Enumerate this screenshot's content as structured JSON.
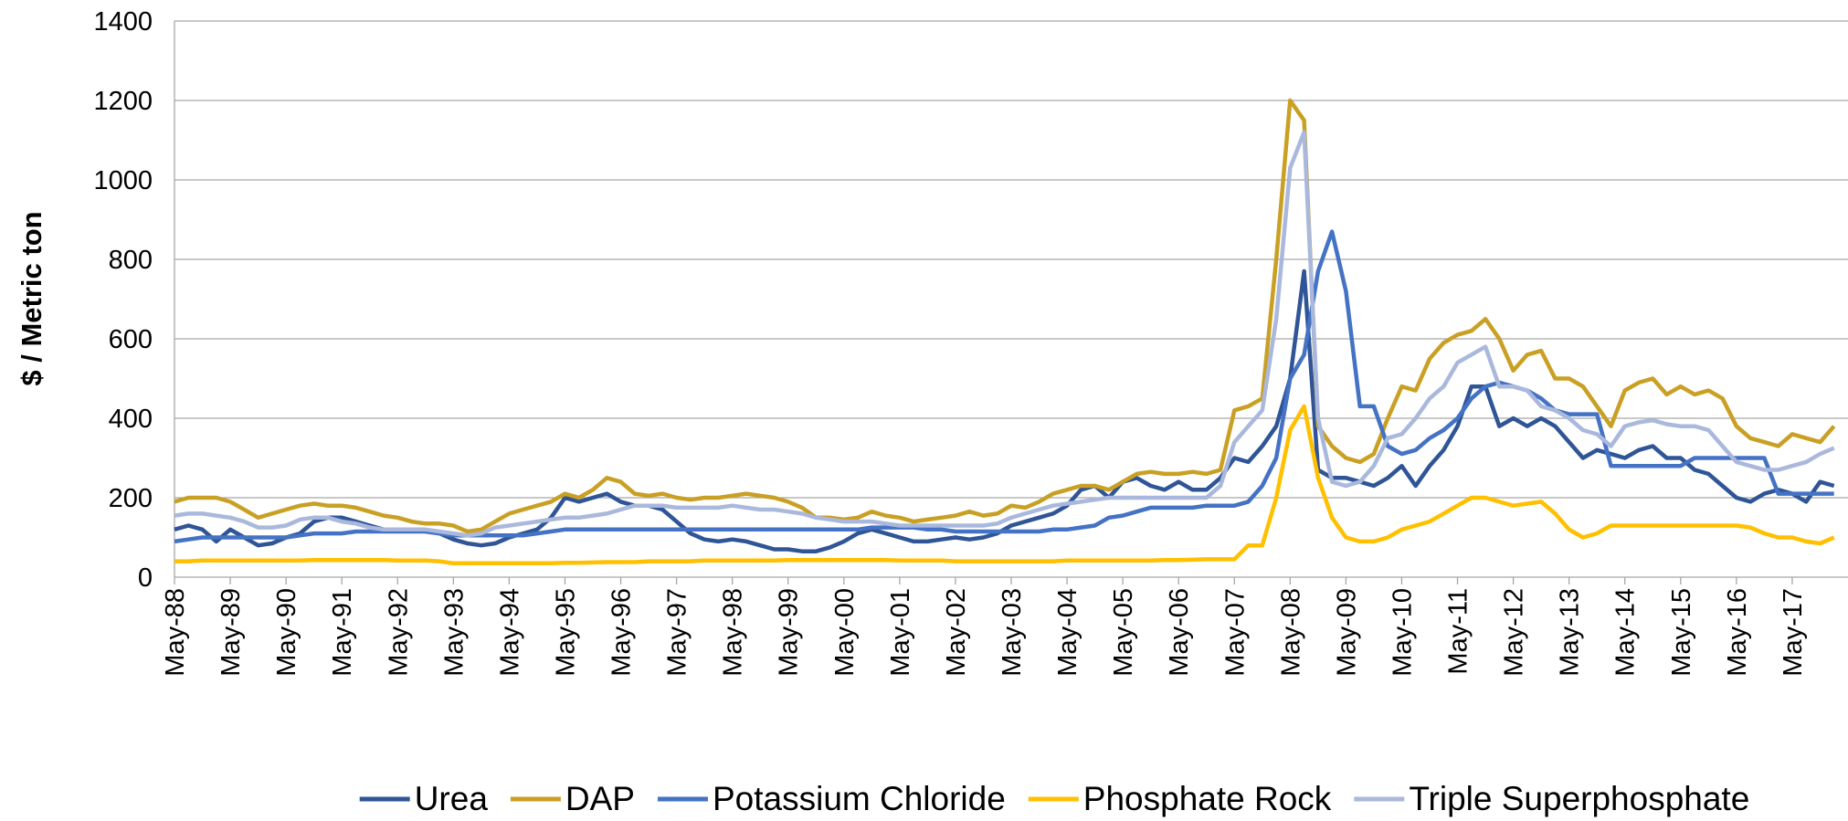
{
  "chart_data": {
    "type": "line",
    "y_label": "$ / Metric ton",
    "categories": [
      "May-88",
      null,
      null,
      null,
      "May-89",
      null,
      null,
      null,
      "May-90",
      null,
      null,
      null,
      "May-91",
      null,
      null,
      null,
      "May-92",
      null,
      null,
      null,
      "May-93",
      null,
      null,
      null,
      "May-94",
      null,
      null,
      null,
      "May-95",
      null,
      null,
      null,
      "May-96",
      null,
      null,
      null,
      "May-97",
      null,
      null,
      null,
      "May-98",
      null,
      null,
      null,
      "May-99",
      null,
      null,
      null,
      "May-00",
      null,
      null,
      null,
      "May-01",
      null,
      null,
      null,
      "May-02",
      null,
      null,
      null,
      "May-03",
      null,
      null,
      null,
      "May-04",
      null,
      null,
      null,
      "May-05",
      null,
      null,
      null,
      "May-06",
      null,
      null,
      null,
      "May-07",
      null,
      null,
      null,
      "May-08",
      null,
      null,
      null,
      "May-09",
      null,
      null,
      null,
      "May-10",
      null,
      null,
      null,
      "May-11",
      null,
      null,
      null,
      "May-12",
      null,
      null,
      null,
      "May-13",
      null,
      null,
      null,
      "May-14",
      null,
      null,
      null,
      "May-15",
      null,
      null,
      null,
      "May-16",
      null,
      null,
      null,
      "May-17",
      null,
      null,
      null
    ],
    "series": [
      {
        "name": "Urea",
        "color": "#2f5597",
        "values": [
          120,
          130,
          120,
          90,
          120,
          100,
          80,
          85,
          100,
          110,
          140,
          150,
          150,
          140,
          130,
          120,
          120,
          120,
          115,
          110,
          95,
          85,
          80,
          85,
          100,
          110,
          120,
          150,
          200,
          190,
          200,
          210,
          190,
          180,
          180,
          170,
          140,
          110,
          95,
          90,
          95,
          90,
          80,
          70,
          70,
          65,
          65,
          75,
          90,
          110,
          120,
          110,
          100,
          90,
          90,
          95,
          100,
          95,
          100,
          110,
          130,
          140,
          150,
          160,
          180,
          220,
          230,
          200,
          240,
          250,
          230,
          220,
          240,
          220,
          220,
          250,
          300,
          290,
          330,
          380,
          500,
          770,
          270,
          250,
          250,
          240,
          230,
          250,
          280,
          230,
          280,
          320,
          380,
          480,
          480,
          380,
          400,
          380,
          400,
          380,
          340,
          300,
          320,
          310,
          300,
          320,
          330,
          300,
          300,
          270,
          260,
          230,
          200,
          190,
          210,
          220,
          210,
          190,
          240,
          230
        ]
      },
      {
        "name": "DAP",
        "color": "#c9a023",
        "values": [
          190,
          200,
          200,
          200,
          190,
          170,
          150,
          160,
          170,
          180,
          185,
          180,
          180,
          175,
          165,
          155,
          150,
          140,
          135,
          135,
          130,
          115,
          120,
          140,
          160,
          170,
          180,
          190,
          210,
          200,
          220,
          250,
          240,
          210,
          205,
          210,
          200,
          195,
          200,
          200,
          205,
          210,
          205,
          200,
          190,
          175,
          150,
          150,
          145,
          150,
          165,
          155,
          150,
          140,
          145,
          150,
          155,
          165,
          155,
          160,
          180,
          175,
          190,
          210,
          220,
          230,
          230,
          220,
          240,
          260,
          265,
          260,
          260,
          265,
          260,
          270,
          420,
          430,
          450,
          800,
          1200,
          1150,
          380,
          330,
          300,
          290,
          310,
          400,
          480,
          470,
          550,
          590,
          610,
          620,
          650,
          600,
          520,
          560,
          570,
          500,
          500,
          480,
          430,
          380,
          470,
          490,
          500,
          460,
          480,
          460,
          470,
          450,
          380,
          350,
          340,
          330,
          360,
          350,
          340,
          380
        ]
      },
      {
        "name": "Potassium Chloride",
        "color": "#4472c4",
        "values": [
          90,
          95,
          100,
          100,
          100,
          100,
          100,
          100,
          100,
          105,
          110,
          110,
          110,
          115,
          115,
          115,
          115,
          115,
          115,
          110,
          105,
          105,
          105,
          105,
          105,
          105,
          110,
          115,
          120,
          120,
          120,
          120,
          120,
          120,
          120,
          120,
          120,
          120,
          120,
          120,
          120,
          120,
          120,
          120,
          120,
          120,
          120,
          120,
          120,
          120,
          125,
          125,
          125,
          125,
          120,
          120,
          115,
          115,
          115,
          115,
          115,
          115,
          115,
          120,
          120,
          125,
          130,
          150,
          155,
          165,
          175,
          175,
          175,
          175,
          180,
          180,
          180,
          190,
          230,
          300,
          500,
          560,
          770,
          870,
          720,
          430,
          430,
          330,
          310,
          320,
          350,
          370,
          400,
          450,
          480,
          490,
          480,
          470,
          450,
          420,
          410,
          410,
          410,
          280,
          280,
          280,
          280,
          280,
          280,
          300,
          300,
          300,
          300,
          300,
          300,
          210,
          210,
          210,
          210,
          210
        ]
      },
      {
        "name": "Phosphate Rock",
        "color": "#ffc000",
        "values": [
          40,
          40,
          42,
          42,
          42,
          42,
          42,
          42,
          42,
          42,
          43,
          43,
          43,
          43,
          43,
          43,
          42,
          42,
          42,
          40,
          35,
          35,
          35,
          35,
          35,
          35,
          35,
          35,
          36,
          36,
          37,
          38,
          38,
          38,
          40,
          40,
          40,
          40,
          42,
          42,
          42,
          42,
          42,
          42,
          43,
          43,
          43,
          43,
          43,
          43,
          43,
          43,
          42,
          42,
          42,
          42,
          40,
          40,
          40,
          40,
          40,
          40,
          40,
          40,
          42,
          42,
          42,
          42,
          42,
          42,
          42,
          43,
          43,
          44,
          45,
          45,
          45,
          80,
          80,
          200,
          370,
          430,
          250,
          150,
          100,
          90,
          90,
          100,
          120,
          130,
          140,
          160,
          180,
          200,
          200,
          190,
          180,
          185,
          190,
          160,
          120,
          100,
          110,
          130,
          130,
          130,
          130,
          130,
          130,
          130,
          130,
          130,
          130,
          125,
          110,
          100,
          100,
          90,
          85,
          100
        ]
      },
      {
        "name": "Triple Superphosphate",
        "color": "#a9b8dc",
        "values": [
          155,
          160,
          160,
          155,
          150,
          140,
          125,
          125,
          130,
          145,
          150,
          150,
          140,
          135,
          125,
          120,
          120,
          120,
          120,
          115,
          110,
          105,
          110,
          125,
          130,
          135,
          140,
          145,
          150,
          150,
          155,
          160,
          170,
          180,
          180,
          180,
          175,
          175,
          175,
          175,
          180,
          175,
          170,
          170,
          165,
          160,
          150,
          145,
          140,
          140,
          140,
          135,
          130,
          130,
          130,
          130,
          130,
          130,
          130,
          135,
          150,
          160,
          170,
          180,
          185,
          190,
          195,
          200,
          200,
          200,
          200,
          200,
          200,
          200,
          200,
          230,
          340,
          380,
          420,
          650,
          1030,
          1120,
          400,
          240,
          230,
          240,
          280,
          350,
          360,
          400,
          450,
          480,
          540,
          560,
          580,
          480,
          480,
          470,
          430,
          420,
          400,
          370,
          360,
          330,
          380,
          390,
          395,
          385,
          380,
          380,
          370,
          330,
          290,
          280,
          270,
          270,
          280,
          290,
          310,
          325
        ]
      }
    ],
    "ylim": [
      0,
      1400
    ],
    "yticks": [
      0,
      200,
      400,
      600,
      800,
      1000,
      1200,
      1400
    ],
    "grid": true,
    "legend": "bottom"
  }
}
